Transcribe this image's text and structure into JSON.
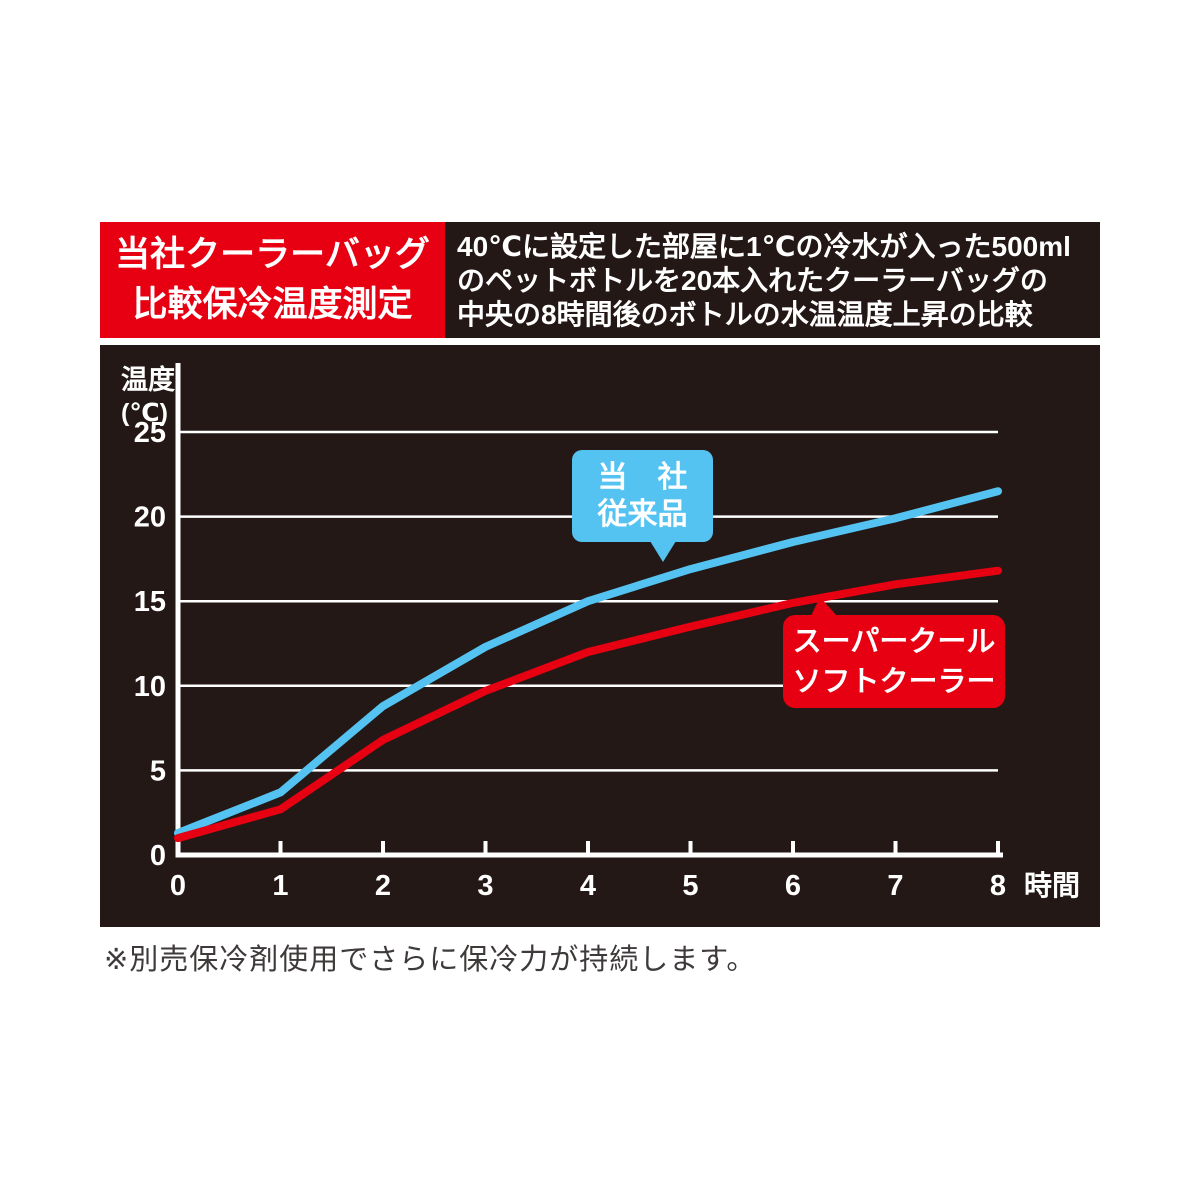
{
  "header": {
    "title_lines": [
      "当社クーラーバッグ",
      "比較保冷温度測定"
    ],
    "title_bg": "#e60012",
    "description_lines": [
      "40℃に設定した部屋に1℃の冷水が入った500ml",
      "のペットボトルを20本入れたクーラーバッグの",
      "中央の8時間後のボトルの水温温度上昇の比較"
    ],
    "description_bg": "#231815"
  },
  "chart_data": {
    "type": "line",
    "title": "当社クーラーバッグ比較保冷温度測定",
    "x": [
      0,
      1,
      2,
      3,
      4,
      5,
      6,
      7,
      8
    ],
    "series": [
      {
        "name": "当社従来品",
        "color": "#54c3f1",
        "values": [
          1.3,
          3.7,
          8.8,
          12.3,
          15.0,
          16.9,
          18.5,
          19.9,
          21.5
        ]
      },
      {
        "name": "スーパークールソフトクーラー",
        "color": "#e60012",
        "values": [
          1.0,
          2.7,
          6.8,
          9.7,
          12.0,
          13.5,
          14.9,
          16.0,
          16.8
        ]
      }
    ],
    "ylabel_lines": [
      "温度",
      "(℃)"
    ],
    "xlabel": "時間",
    "yticks": [
      0,
      5,
      10,
      15,
      20,
      25
    ],
    "xticks": [
      0,
      1,
      2,
      3,
      4,
      5,
      6,
      7,
      8
    ],
    "ylim": [
      0,
      25
    ],
    "xlim": [
      0,
      8
    ],
    "grid": "horizontal-only",
    "legend_position": "callouts-on-plot",
    "background": "#231815",
    "grid_color": "#ffffff",
    "axis_color": "#ffffff"
  },
  "callouts": {
    "blue": {
      "lines": [
        "当　社",
        "従来品"
      ],
      "color": "#54c3f1"
    },
    "red": {
      "lines": [
        "スーパークール",
        "ソフトクーラー"
      ],
      "color": "#e60012"
    }
  },
  "footnote": "※別売保冷剤使用でさらに保冷力が持続します。"
}
